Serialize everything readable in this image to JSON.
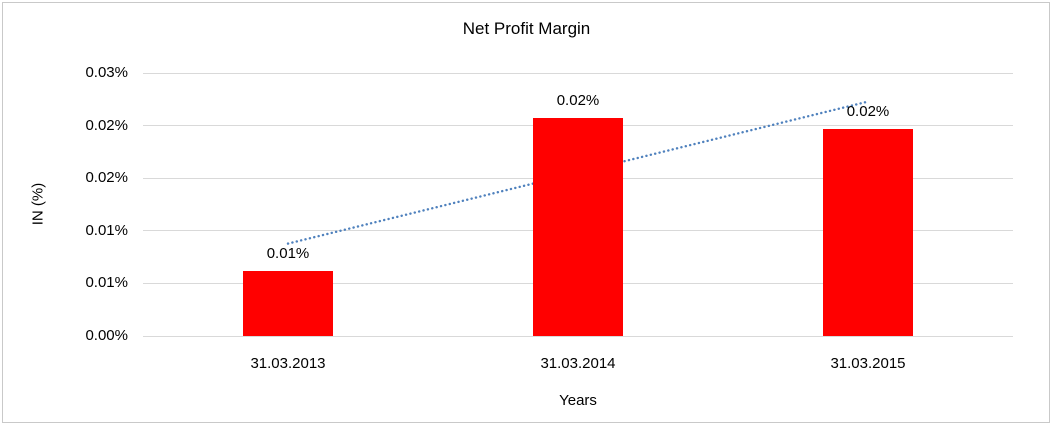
{
  "chart_data": {
    "type": "bar",
    "title": "Net Profit Margin",
    "xlabel": "Years",
    "ylabel": "IN (%)",
    "categories": [
      "31.03.2013",
      "31.03.2014",
      "31.03.2015"
    ],
    "series": [
      {
        "name": "Net Profit Margin",
        "values": [
          0.0062,
          0.0207,
          0.0197
        ],
        "data_labels": [
          "0.01%",
          "0.02%",
          "0.02%"
        ]
      }
    ],
    "ylim": [
      0,
      0.025
    ],
    "ytick_labels_bottom_to_top": [
      "0.00%",
      "0.01%",
      "0.01%",
      "0.02%",
      "0.02%",
      "0.03%"
    ],
    "grid": "horizontal",
    "legend": "none",
    "bar_color": "#ff0000",
    "gridline_color": "#d9d9d9",
    "trendline": {
      "type": "linear",
      "style": "dotted",
      "color": "#4f81bd"
    }
  }
}
